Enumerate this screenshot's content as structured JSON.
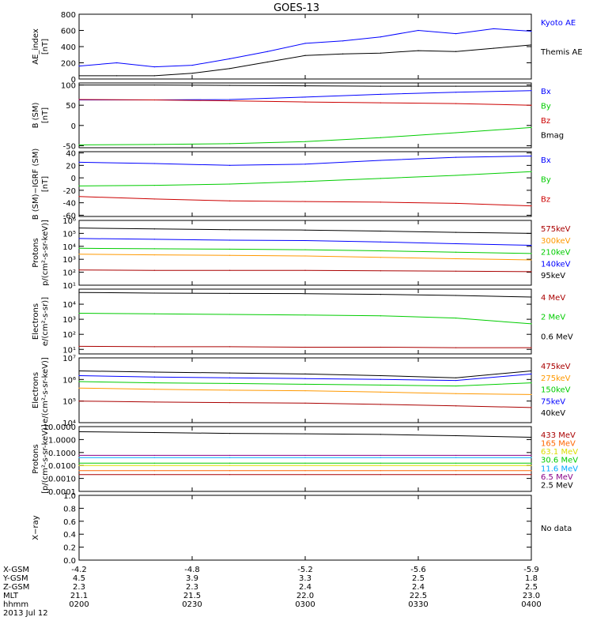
{
  "title": "GOES-13",
  "colors": {
    "black": "#000000",
    "blue": "#0000ff",
    "green": "#00cc00",
    "red": "#cc0000",
    "orange": "#ff9900",
    "cyan": "#00aaff",
    "purple": "#880088",
    "yellow": "#dddd00",
    "darkred": "#aa0000"
  },
  "chart_data": [
    {
      "type": "line",
      "id": "ae",
      "ylabel": [
        "AE_index",
        "[nT]"
      ],
      "yscale": "linear",
      "ylim": [
        0,
        800
      ],
      "ticks": [
        {
          "v": 0,
          "label": "0"
        },
        {
          "v": 200,
          "label": "200"
        },
        {
          "v": 400,
          "label": "400"
        },
        {
          "v": 600,
          "label": "600"
        },
        {
          "v": 800,
          "label": "800"
        }
      ],
      "series": [
        {
          "name": "Kyoto AE",
          "color": "#0000ff",
          "x": [
            0,
            10,
            20,
            30,
            40,
            50,
            60,
            70,
            80,
            90,
            100,
            110,
            120
          ],
          "values": [
            160,
            200,
            150,
            170,
            250,
            340,
            440,
            470,
            520,
            600,
            560,
            620,
            590
          ]
        },
        {
          "name": "Themis AE",
          "color": "#000000",
          "x": [
            0,
            10,
            20,
            30,
            40,
            50,
            60,
            70,
            80,
            90,
            100,
            110,
            120
          ],
          "values": [
            40,
            40,
            40,
            70,
            130,
            210,
            290,
            310,
            320,
            350,
            340,
            380,
            420
          ]
        }
      ]
    },
    {
      "type": "line",
      "id": "b",
      "ylabel": [
        "B (SM)",
        "[nT]"
      ],
      "yscale": "linear",
      "ylim": [
        -55,
        105
      ],
      "ticks": [
        {
          "v": -50,
          "label": "-50"
        },
        {
          "v": 0,
          "label": "0"
        },
        {
          "v": 50,
          "label": "50"
        },
        {
          "v": 100,
          "label": "100"
        }
      ],
      "series": [
        {
          "name": "Bx",
          "color": "#0000ff",
          "x": [
            0,
            20,
            40,
            60,
            80,
            100,
            120
          ],
          "values": [
            63,
            63,
            64,
            70,
            77,
            82,
            86
          ]
        },
        {
          "name": "By",
          "color": "#00cc00",
          "x": [
            0,
            20,
            40,
            60,
            80,
            100,
            120
          ],
          "values": [
            -48,
            -47,
            -45,
            -40,
            -30,
            -18,
            -5
          ]
        },
        {
          "name": "Bz",
          "color": "#cc0000",
          "x": [
            0,
            20,
            40,
            60,
            80,
            100,
            120
          ],
          "values": [
            64,
            63,
            61,
            58,
            56,
            54,
            50
          ]
        },
        {
          "name": "Bmag",
          "color": "#000000",
          "x": [
            0,
            20,
            40,
            60,
            80,
            100,
            120
          ],
          "values": [
            100,
            100,
            99,
            98,
            97,
            97,
            97
          ]
        }
      ]
    },
    {
      "type": "line",
      "id": "digrf",
      "ylabel": [
        "B (SM)−IGRF (SM)",
        "[nT]"
      ],
      "yscale": "linear",
      "ylim": [
        -62,
        42
      ],
      "ticks": [
        {
          "v": -60,
          "label": "-60"
        },
        {
          "v": -40,
          "label": "-40"
        },
        {
          "v": -20,
          "label": "-20"
        },
        {
          "v": 0,
          "label": "0"
        },
        {
          "v": 20,
          "label": "20"
        },
        {
          "v": 40,
          "label": "40"
        }
      ],
      "series": [
        {
          "name": "Bx",
          "color": "#0000ff",
          "x": [
            0,
            20,
            40,
            60,
            80,
            100,
            120
          ],
          "values": [
            25,
            23,
            20,
            22,
            28,
            33,
            35
          ]
        },
        {
          "name": "By",
          "color": "#00cc00",
          "x": [
            0,
            20,
            40,
            60,
            80,
            100,
            120
          ],
          "values": [
            -13,
            -12,
            -10,
            -6,
            -1,
            4,
            10
          ]
        },
        {
          "name": "Bz",
          "color": "#cc0000",
          "x": [
            0,
            20,
            40,
            60,
            80,
            100,
            120
          ],
          "values": [
            -30,
            -34,
            -37,
            -38,
            -39,
            -41,
            -45
          ]
        }
      ]
    },
    {
      "type": "line",
      "id": "protons_kev",
      "ylabel": [
        "Protons",
        "p/(cm²-s-sr-keV)]"
      ],
      "yscale": "log",
      "ylim": [
        10,
        1000000
      ],
      "ticks": [
        {
          "v": 10,
          "label": "10¹"
        },
        {
          "v": 100,
          "label": "10²"
        },
        {
          "v": 1000,
          "label": "10³"
        },
        {
          "v": 10000,
          "label": "10⁴"
        },
        {
          "v": 100000,
          "label": "10⁵"
        },
        {
          "v": 1000000,
          "label": "10⁶"
        }
      ],
      "series": [
        {
          "name": "575keV",
          "color": "#aa0000",
          "x": [
            0,
            20,
            40,
            60,
            80,
            100,
            120
          ],
          "values": [
            150,
            140,
            140,
            140,
            130,
            120,
            110
          ]
        },
        {
          "name": "300keV",
          "color": "#ff9900",
          "x": [
            0,
            20,
            40,
            60,
            80,
            100,
            120
          ],
          "values": [
            2500,
            2200,
            2000,
            1800,
            1400,
            1100,
            900
          ]
        },
        {
          "name": "210keV",
          "color": "#00cc00",
          "x": [
            0,
            20,
            40,
            60,
            80,
            100,
            120
          ],
          "values": [
            7000,
            6500,
            6000,
            5500,
            4500,
            3500,
            2800
          ]
        },
        {
          "name": "140keV",
          "color": "#0000ff",
          "x": [
            0,
            20,
            40,
            60,
            80,
            100,
            120
          ],
          "values": [
            40000,
            35000,
            30000,
            28000,
            22000,
            16000,
            12000
          ]
        },
        {
          "name": "95keV",
          "color": "#000000",
          "x": [
            0,
            20,
            40,
            60,
            80,
            100,
            120
          ],
          "values": [
            260000,
            220000,
            190000,
            180000,
            150000,
            120000,
            100000
          ]
        }
      ]
    },
    {
      "type": "line",
      "id": "electrons_mev",
      "ylabel": [
        "Electrons",
        "e/(cm²-s-sr)]"
      ],
      "yscale": "log",
      "ylim": [
        5,
        100000
      ],
      "ticks": [
        {
          "v": 10,
          "label": "10¹"
        },
        {
          "v": 100,
          "label": "10²"
        },
        {
          "v": 1000,
          "label": "10³"
        },
        {
          "v": 10000,
          "label": "10⁴"
        }
      ],
      "series": [
        {
          "name": "4 MeV",
          "color": "#aa0000",
          "x": [
            0,
            20,
            40,
            60,
            80,
            100,
            120
          ],
          "values": [
            16,
            15,
            15,
            14,
            14,
            13,
            13
          ]
        },
        {
          "name": "2 MeV",
          "color": "#00cc00",
          "x": [
            0,
            20,
            40,
            60,
            80,
            100,
            120
          ],
          "values": [
            2500,
            2300,
            2100,
            1900,
            1700,
            1200,
            500
          ]
        },
        {
          "name": "0.6 MeV",
          "color": "#000000",
          "x": [
            0,
            20,
            40,
            60,
            80,
            100,
            120
          ],
          "values": [
            60000,
            55000,
            52000,
            50000,
            45000,
            38000,
            30000
          ]
        }
      ]
    },
    {
      "type": "line",
      "id": "electrons_kev",
      "ylabel": [
        "Electrons",
        "e/(cm²-s-sr-keV)]"
      ],
      "yscale": "log",
      "ylim": [
        10000,
        10000000
      ],
      "ticks": [
        {
          "v": 10000,
          "label": "10⁴"
        },
        {
          "v": 100000,
          "label": "10⁵"
        },
        {
          "v": 1000000,
          "label": "10⁶"
        },
        {
          "v": 10000000,
          "label": "10⁷"
        }
      ],
      "series": [
        {
          "name": "475keV",
          "color": "#aa0000",
          "x": [
            0,
            20,
            40,
            60,
            80,
            100,
            120
          ],
          "values": [
            100000,
            90000,
            85000,
            80000,
            70000,
            60000,
            50000
          ]
        },
        {
          "name": "275keV",
          "color": "#ff9900",
          "x": [
            0,
            20,
            40,
            60,
            80,
            100,
            120
          ],
          "values": [
            400000,
            350000,
            320000,
            300000,
            260000,
            220000,
            200000
          ]
        },
        {
          "name": "150keV",
          "color": "#00cc00",
          "x": [
            0,
            20,
            40,
            60,
            80,
            100,
            120
          ],
          "values": [
            800000,
            700000,
            650000,
            600000,
            550000,
            500000,
            700000
          ]
        },
        {
          "name": "75keV",
          "color": "#0000ff",
          "x": [
            0,
            20,
            40,
            60,
            80,
            100,
            120
          ],
          "values": [
            1500000,
            1300000,
            1200000,
            1100000,
            1000000,
            900000,
            1800000
          ]
        },
        {
          "name": "40keV",
          "color": "#000000",
          "x": [
            0,
            20,
            40,
            60,
            80,
            100,
            120
          ],
          "values": [
            2500000,
            2200000,
            2000000,
            1800000,
            1500000,
            1200000,
            2500000
          ]
        }
      ]
    },
    {
      "type": "line",
      "id": "protons_mev",
      "ylabel": [
        "Protons",
        "[p/(cm²-s-sr-keV)]"
      ],
      "yscale": "log",
      "ylim": [
        0.0001,
        10
      ],
      "ticks": [
        {
          "v": 0.0001,
          "label": "0.0001"
        },
        {
          "v": 0.001,
          "label": "0.0010"
        },
        {
          "v": 0.01,
          "label": "0.0100"
        },
        {
          "v": 0.1,
          "label": "0.1000"
        },
        {
          "v": 1,
          "label": "1.0000"
        },
        {
          "v": 10,
          "label": "10.0000"
        }
      ],
      "series": [
        {
          "name": "433 MeV",
          "color": "#aa0000",
          "x": [
            0,
            20,
            40,
            60,
            80,
            100,
            120
          ],
          "values": [
            0.002,
            0.002,
            0.002,
            0.002,
            0.002,
            0.002,
            0.002
          ]
        },
        {
          "name": "165 MeV",
          "color": "#ff6600",
          "x": [
            0,
            20,
            40,
            60,
            80,
            100,
            120
          ],
          "values": [
            0.004,
            0.004,
            0.004,
            0.004,
            0.004,
            0.004,
            0.004
          ]
        },
        {
          "name": "63.1 MeV",
          "color": "#dddd00",
          "x": [
            0,
            20,
            40,
            60,
            80,
            100,
            120
          ],
          "values": [
            0.01,
            0.01,
            0.01,
            0.01,
            0.01,
            0.01,
            0.01
          ]
        },
        {
          "name": "30.6 MeV",
          "color": "#00cc00",
          "x": [
            0,
            20,
            40,
            60,
            80,
            100,
            120
          ],
          "values": [
            0.015,
            0.015,
            0.015,
            0.015,
            0.015,
            0.015,
            0.015
          ]
        },
        {
          "name": "11.6 MeV",
          "color": "#00aaff",
          "x": [
            0,
            20,
            40,
            60,
            80,
            100,
            120
          ],
          "values": [
            0.04,
            0.04,
            0.04,
            0.04,
            0.04,
            0.04,
            0.04
          ]
        },
        {
          "name": "6.5 MeV",
          "color": "#880088",
          "x": [
            0,
            20,
            40,
            60,
            80,
            100,
            120
          ],
          "values": [
            0.06,
            0.06,
            0.06,
            0.06,
            0.06,
            0.06,
            0.06
          ]
        },
        {
          "name": "2.5 MeV",
          "color": "#000000",
          "x": [
            0,
            20,
            40,
            60,
            80,
            100,
            120
          ],
          "values": [
            4,
            3.5,
            3,
            2.8,
            2.5,
            2,
            1.5
          ]
        }
      ]
    },
    {
      "type": "line",
      "id": "xray",
      "ylabel": [
        "X−ray",
        ""
      ],
      "yscale": "linear",
      "ylim": [
        0,
        1
      ],
      "ticks": [
        {
          "v": 0,
          "label": "0.0"
        },
        {
          "v": 0.2,
          "label": "0.2"
        },
        {
          "v": 0.4,
          "label": "0.4"
        },
        {
          "v": 0.6,
          "label": "0.6"
        },
        {
          "v": 0.8,
          "label": "0.8"
        },
        {
          "v": 1,
          "label": "1.0"
        }
      ],
      "series": [],
      "note": "No data"
    }
  ],
  "bottom_axis": {
    "row_labels": [
      "X-GSM",
      "Y-GSM",
      "Z-GSM",
      "MLT",
      "hhmm"
    ],
    "date": "2013 Jul 12",
    "x": [
      0,
      30,
      60,
      90,
      120
    ],
    "columns": [
      [
        "-4.2",
        "4.5",
        "2.3",
        "21.1",
        "0200"
      ],
      [
        "-4.8",
        "3.9",
        "2.3",
        "21.5",
        "0230"
      ],
      [
        "-5.2",
        "3.3",
        "2.4",
        "22.0",
        "0300"
      ],
      [
        "-5.6",
        "2.5",
        "2.4",
        "22.5",
        "0330"
      ],
      [
        "-5.9",
        "1.8",
        "2.5",
        "23.0",
        "0400"
      ]
    ]
  }
}
